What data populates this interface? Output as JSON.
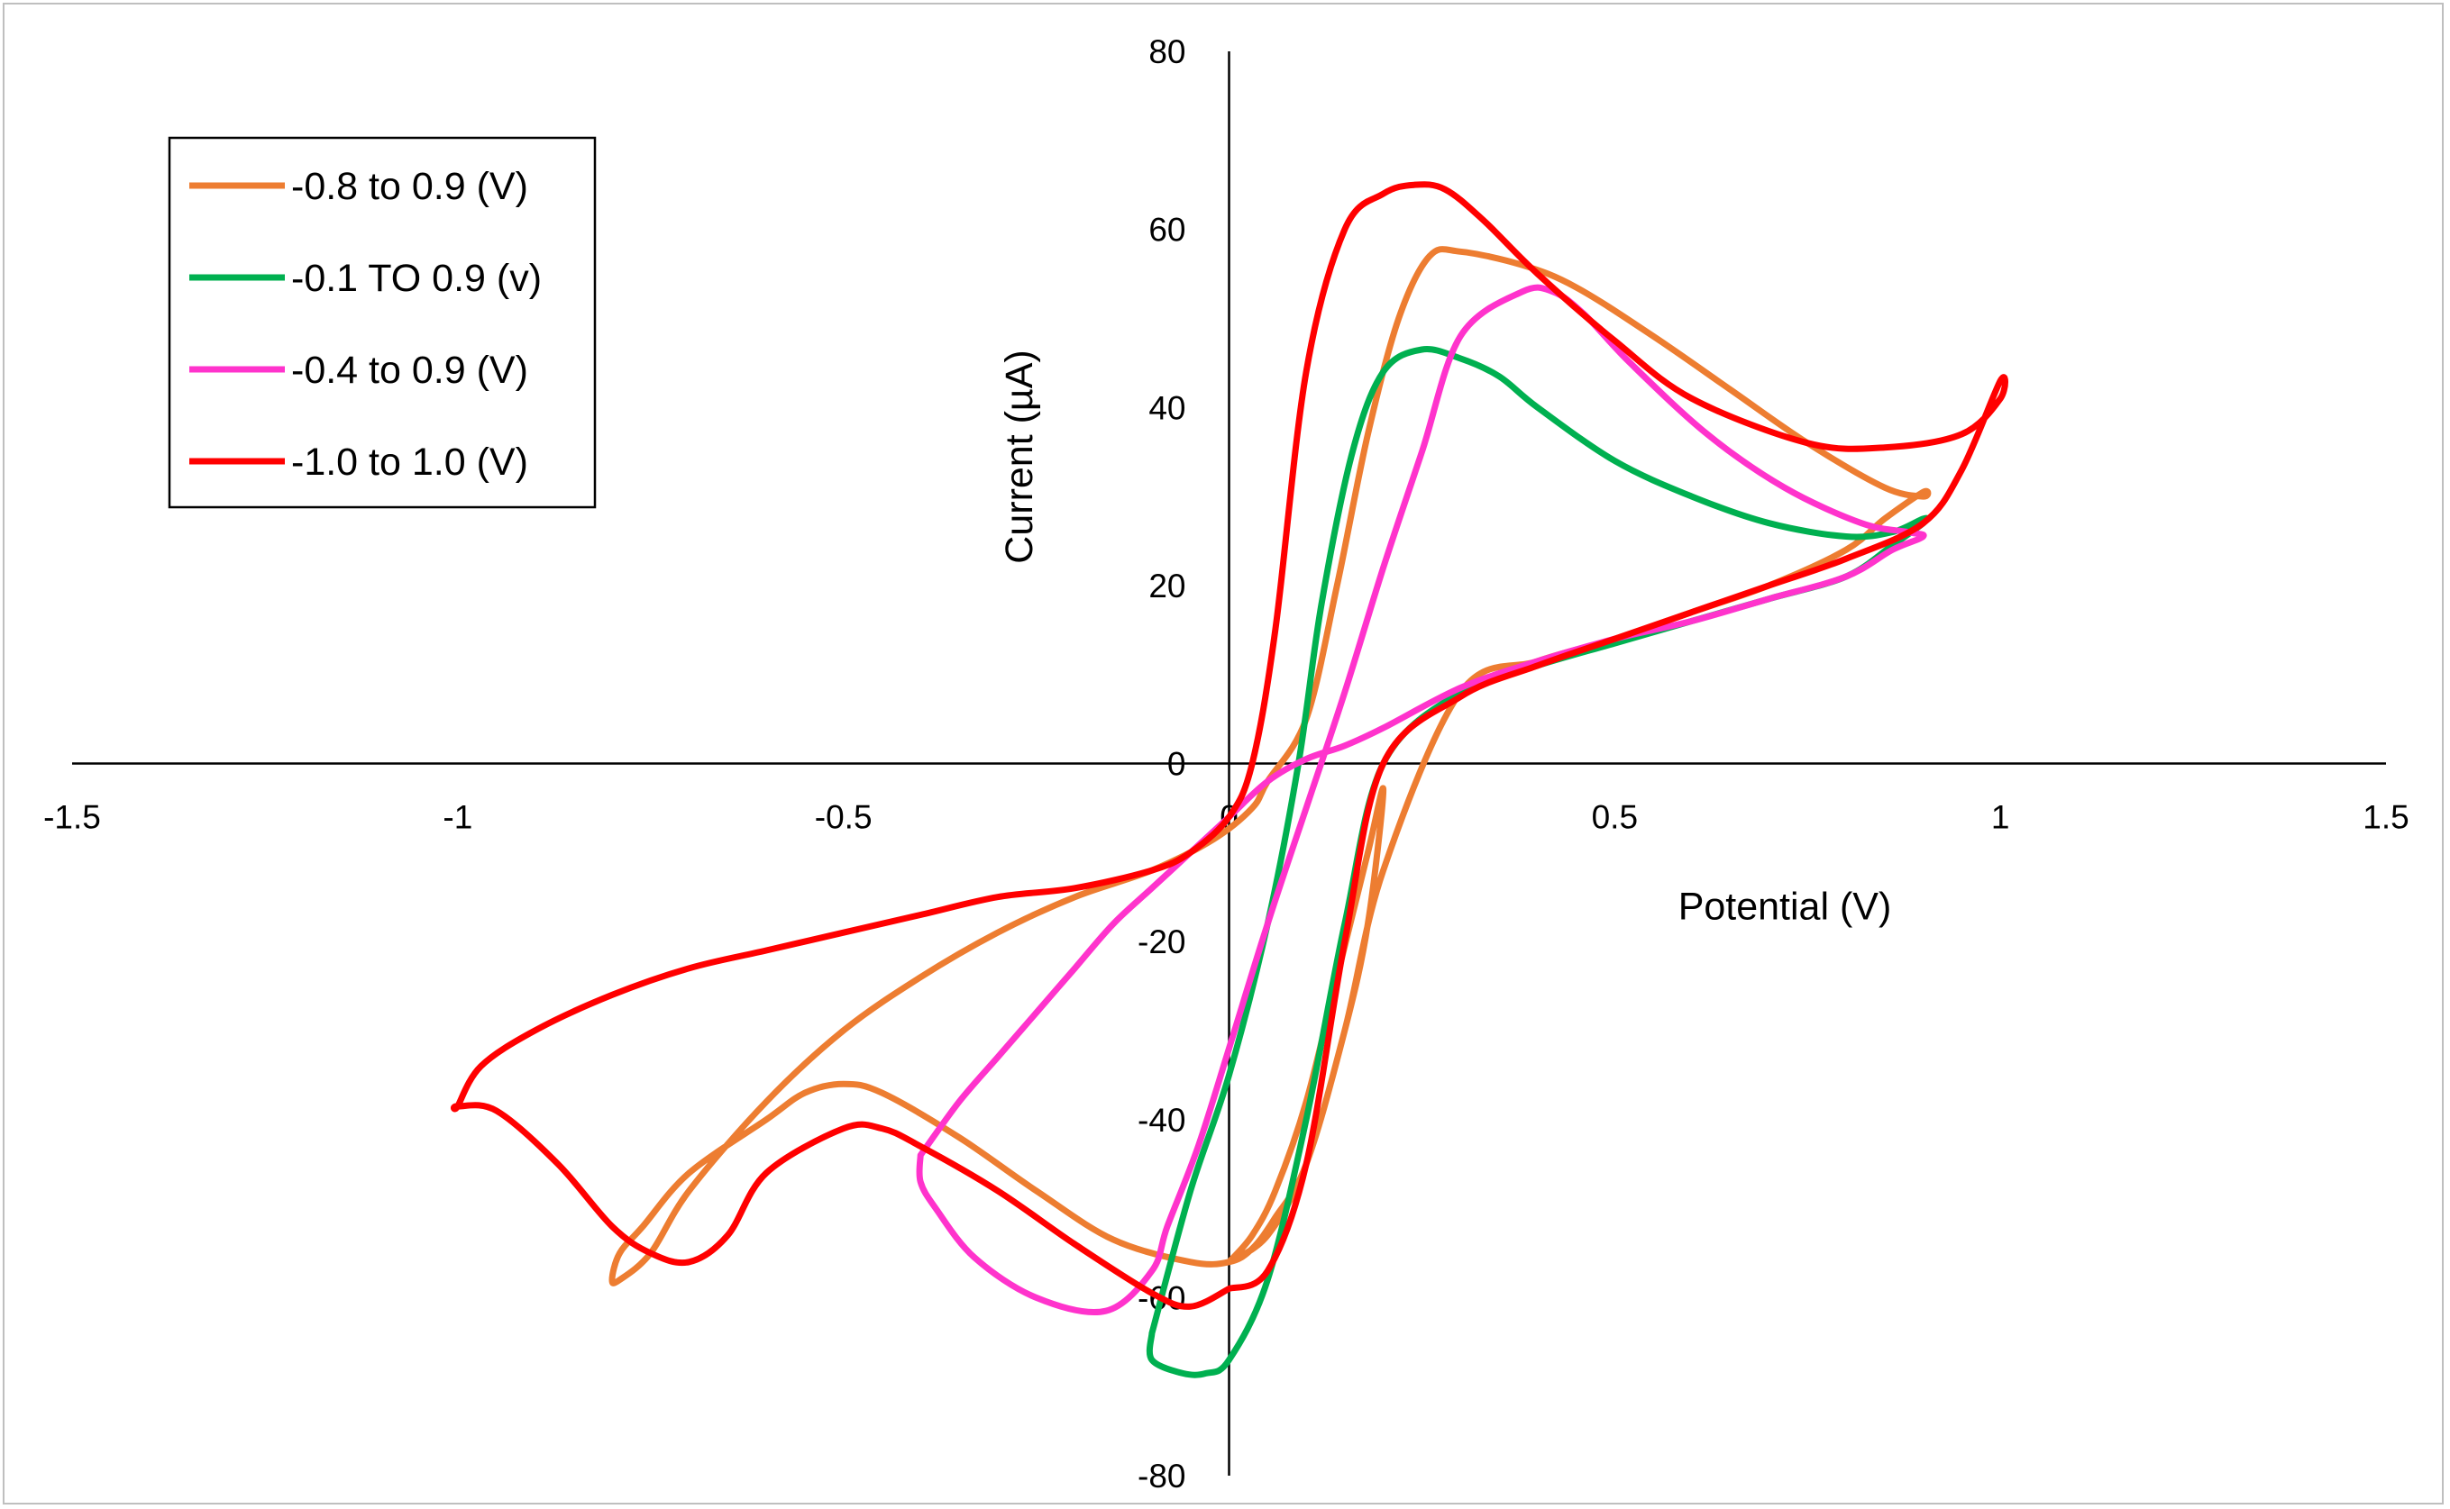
{
  "chart_data": {
    "type": "line",
    "title": "",
    "xlabel": "Potential (V)",
    "ylabel": "Current (µA)",
    "xlim": [
      -1.5,
      1.5
    ],
    "ylim": [
      -80,
      80
    ],
    "x_ticks": [
      -1.5,
      -1,
      -0.5,
      0,
      0.5,
      1,
      1.5
    ],
    "x_tick_labels": [
      "-1.5",
      "-1",
      "-0.5",
      "0",
      "0.5",
      "1",
      "1.5"
    ],
    "y_ticks": [
      -80,
      -60,
      -40,
      -20,
      0,
      20,
      40,
      60,
      80
    ],
    "y_tick_labels": [
      "-80",
      "-60",
      "-40",
      "-20",
      "0",
      "20",
      "40",
      "60",
      "80"
    ],
    "grid": false,
    "legend_position": "top-left",
    "series": [
      {
        "name": "-0.8 to 0.9 (V)",
        "color": "#ED7D31",
        "x": [
          0.0,
          0.05,
          0.1,
          0.15,
          0.2,
          0.3,
          0.4,
          0.5,
          0.6,
          0.7,
          0.8,
          0.85,
          0.9,
          0.9,
          0.85,
          0.75,
          0.65,
          0.55,
          0.45,
          0.38,
          0.3,
          0.26,
          0.22,
          0.18,
          0.14,
          0.1,
          0.05,
          0.03,
          -0.02,
          -0.1,
          -0.2,
          -0.3,
          -0.4,
          -0.5,
          -0.6,
          -0.7,
          -0.75,
          -0.79,
          -0.8,
          -0.79,
          -0.76,
          -0.7,
          -0.6,
          -0.55,
          -0.5,
          -0.45,
          -0.35,
          -0.25,
          -0.15,
          -0.05,
          0.0,
          0.03,
          0.06,
          0.1,
          0.15,
          0.18,
          0.2,
          0.18,
          0.14,
          0.1,
          0.06,
          0.03,
          0.0
        ],
        "values": [
          -56.0,
          -53.0,
          -45.0,
          -30.0,
          -12.0,
          8.0,
          11.5,
          14.0,
          17.0,
          20.0,
          24.0,
          27.5,
          30.5,
          30.0,
          31.0,
          36.0,
          42.0,
          48.0,
          53.5,
          56.0,
          57.5,
          57.0,
          50.0,
          37.0,
          20.0,
          5.0,
          -2.0,
          -5.0,
          -8.5,
          -12.0,
          -15.0,
          -19.0,
          -24.0,
          -30.0,
          -38.0,
          -48.0,
          -55.0,
          -58.0,
          -58.0,
          -55.0,
          -52.0,
          -46.0,
          -40.0,
          -37.0,
          -36.0,
          -37.0,
          -42.0,
          -48.0,
          -53.5,
          -56.0,
          -56.0,
          -54.5,
          -51.0,
          -45.0,
          -30.0,
          -18.0,
          -3.0,
          -10.0,
          -24.0,
          -38.0,
          -48.0,
          -53.0,
          -56.0
        ]
      },
      {
        "name": "-0.1 TO 0.9 (v)",
        "color": "#00B050",
        "x": [
          -0.1,
          -0.1,
          -0.06,
          -0.03,
          0.0,
          0.05,
          0.1,
          0.15,
          0.2,
          0.3,
          0.4,
          0.5,
          0.6,
          0.7,
          0.8,
          0.86,
          0.9,
          0.9,
          0.86,
          0.8,
          0.7,
          0.6,
          0.5,
          0.4,
          0.35,
          0.3,
          0.25,
          0.2,
          0.16,
          0.12,
          0.09,
          0.05,
          0.0,
          -0.05,
          -0.1
        ],
        "values": [
          -64.0,
          -67.0,
          -68.5,
          -68.5,
          -67.0,
          -58.0,
          -40.0,
          -18.0,
          0.0,
          8.0,
          11.0,
          13.5,
          16.0,
          18.5,
          21.0,
          24.5,
          27.0,
          27.5,
          26.0,
          25.5,
          27.0,
          30.0,
          34.0,
          40.0,
          43.5,
          45.5,
          46.5,
          44.0,
          35.0,
          18.0,
          0.0,
          -18.0,
          -35.0,
          -48.0,
          -64.0
        ]
      },
      {
        "name": "-0.4 to 0.9 (V)",
        "color": "#FF33CC",
        "x": [
          -0.4,
          -0.35,
          -0.3,
          -0.25,
          -0.2,
          -0.15,
          -0.1,
          -0.05,
          0.0,
          0.05,
          0.1,
          0.15,
          0.2,
          0.3,
          0.4,
          0.5,
          0.6,
          0.7,
          0.8,
          0.86,
          0.9,
          0.88,
          0.82,
          0.72,
          0.62,
          0.52,
          0.46,
          0.42,
          0.38,
          0.3,
          0.25,
          0.2,
          0.15,
          0.1,
          0.05,
          0.0,
          -0.04,
          -0.08,
          -0.1,
          -0.16,
          -0.25,
          -0.33,
          -0.38,
          -0.4,
          -0.4
        ],
        "values": [
          -44.0,
          -38.0,
          -33.0,
          -28.0,
          -23.0,
          -18.0,
          -14.0,
          -10.0,
          -6.0,
          -2.0,
          0.5,
          2.0,
          4.0,
          8.5,
          11.5,
          14.0,
          16.0,
          18.5,
          21.0,
          24.0,
          25.5,
          26.0,
          27.0,
          31.0,
          37.0,
          45.0,
          50.5,
          53.0,
          53.0,
          48.0,
          35.0,
          22.0,
          8.0,
          -5.0,
          -18.0,
          -32.0,
          -43.0,
          -52.0,
          -57.0,
          -61.5,
          -60.0,
          -55.5,
          -50.0,
          -47.0,
          -44.0
        ]
      },
      {
        "name": "-1.0 to 1.0 (V)",
        "color": "#FF0000",
        "x": [
          0.0,
          0.05,
          0.1,
          0.15,
          0.2,
          0.3,
          0.4,
          0.5,
          0.6,
          0.7,
          0.8,
          0.9,
          0.95,
          1.0,
          1.0,
          0.95,
          0.85,
          0.75,
          0.6,
          0.5,
          0.4,
          0.33,
          0.28,
          0.24,
          0.2,
          0.15,
          0.1,
          0.06,
          0.03,
          0.0,
          -0.05,
          -0.1,
          -0.2,
          -0.3,
          -0.4,
          -0.5,
          -0.6,
          -0.7,
          -0.8,
          -0.9,
          -0.97,
          -1.0,
          -1.0,
          -0.95,
          -0.87,
          -0.8,
          -0.75,
          -0.7,
          -0.65,
          -0.6,
          -0.5,
          -0.45,
          -0.4,
          -0.3,
          -0.2,
          -0.1,
          -0.05,
          0.0
        ],
        "values": [
          -59.0,
          -57.0,
          -45.0,
          -20.0,
          0.0,
          7.5,
          11.0,
          14.0,
          17.0,
          20.0,
          23.0,
          27.0,
          33.0,
          43.0,
          41.0,
          37.0,
          35.5,
          36.0,
          41.0,
          47.5,
          55.0,
          61.0,
          64.5,
          65.0,
          64.0,
          60.0,
          44.0,
          15.0,
          0.0,
          -6.0,
          -10.0,
          -12.0,
          -14.0,
          -15.0,
          -17.0,
          -19.0,
          -21.0,
          -23.0,
          -26.0,
          -30.0,
          -34.0,
          -38.5,
          -38.5,
          -39.0,
          -45.0,
          -52.0,
          -55.0,
          -56.0,
          -53.0,
          -46.0,
          -41.0,
          -41.0,
          -43.0,
          -48.0,
          -54.0,
          -59.5,
          -61.0,
          -59.0
        ]
      }
    ]
  }
}
